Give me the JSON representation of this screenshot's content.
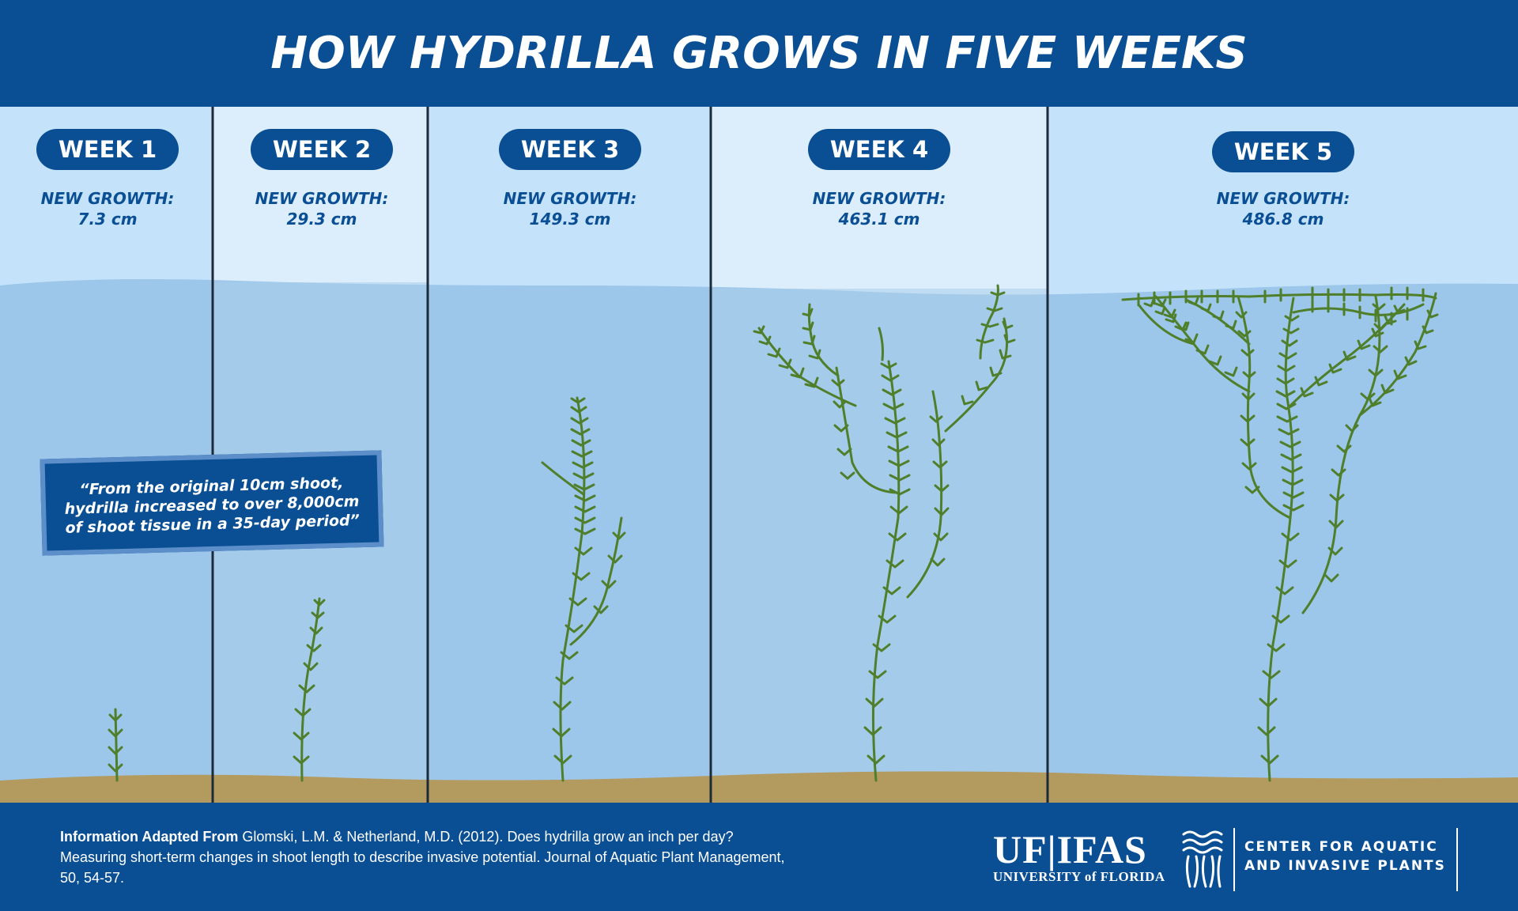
{
  "title": "HOW HYDRILLA GROWS IN FIVE WEEKS",
  "growth_heading": "NEW GROWTH:",
  "weeks": [
    {
      "label": "WEEK 1",
      "growth": "7.3 cm"
    },
    {
      "label": "WEEK 2",
      "growth": "29.3 cm"
    },
    {
      "label": "WEEK 3",
      "growth": "149.3 cm"
    },
    {
      "label": "WEEK 4",
      "growth": "463.1 cm"
    },
    {
      "label": "WEEK 5",
      "growth": "486.8 cm"
    }
  ],
  "quote": "“From the original 10cm shoot,\nhydrilla increased to over 8,000cm\nof shoot tissue in a 35-day period”",
  "citation": {
    "lead": "Information Adapted From",
    "text": " Glomski, L.M. & Netherland, M.D. (2012). Does hydrilla grow an inch per day?  Measuring short-term changes in shoot length to describe invasive potential. Journal of Aquatic Plant Management, 50, 54-57."
  },
  "logo": {
    "uf_ifas": "UF|IFAS",
    "university": "UNIVERSITY of FLORIDA",
    "center_line1": "CENTER FOR AQUATIC",
    "center_line2": "AND INVASIVE PLANTS"
  },
  "colors": {
    "brand_blue": "#0a4f94",
    "sky_light": "#c5e2fb",
    "water": "#94c1e6",
    "plant_green": "#4f7f2a",
    "sediment": "#b39a5e"
  }
}
